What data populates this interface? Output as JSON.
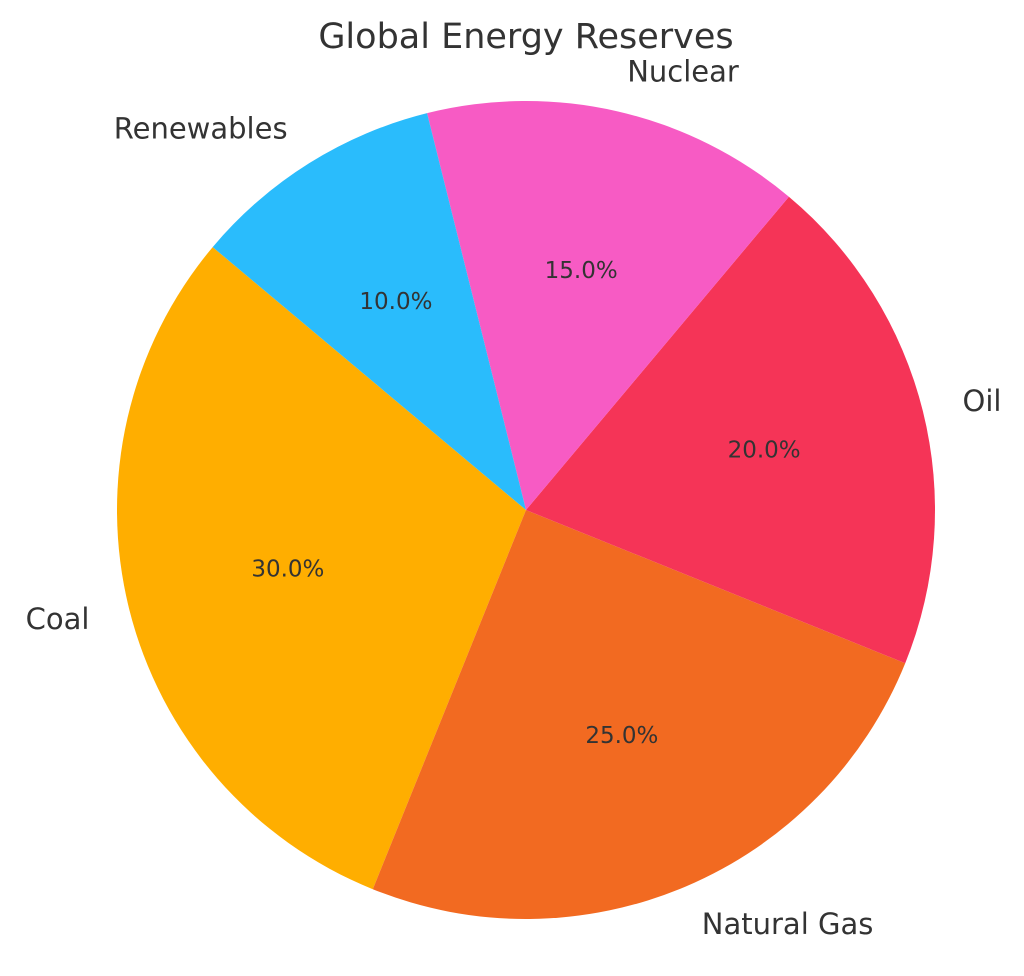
{
  "chart_data": {
    "type": "pie",
    "title": "Global Energy Reserves",
    "categories": [
      "Coal",
      "Natural Gas",
      "Oil",
      "Nuclear",
      "Renewables"
    ],
    "values": [
      30,
      25,
      20,
      15,
      10
    ],
    "percent_labels": [
      "30.0%",
      "25.0%",
      "20.0%",
      "15.0%",
      "10.0%"
    ],
    "colors": [
      "#ffae00",
      "#f26a21",
      "#f53457",
      "#f75bc4",
      "#2abcfc"
    ],
    "start_angle_deg": 140,
    "direction": "counterclockwise",
    "legend": "none"
  }
}
